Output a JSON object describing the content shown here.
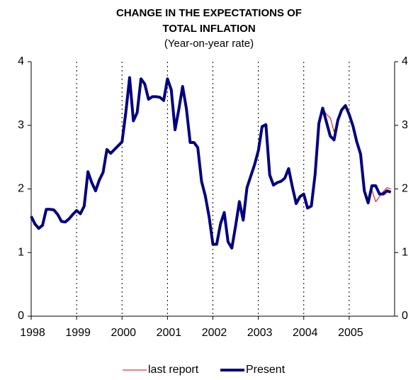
{
  "chart_data": {
    "type": "line",
    "title": "CHANGE IN THE EXPECTATIONS OF TOTAL INFLATION",
    "subtitle": "(Year-on-year rate)",
    "x": [
      1998,
      1998.083,
      1998.167,
      1998.25,
      1998.333,
      1998.417,
      1998.5,
      1998.583,
      1998.667,
      1998.75,
      1998.833,
      1998.917,
      1999,
      1999.083,
      1999.167,
      1999.25,
      1999.333,
      1999.417,
      1999.5,
      1999.583,
      1999.667,
      1999.75,
      1999.833,
      1999.917,
      2000,
      2000.083,
      2000.167,
      2000.25,
      2000.333,
      2000.417,
      2000.5,
      2000.583,
      2000.667,
      2000.75,
      2000.833,
      2000.917,
      2001,
      2001.083,
      2001.167,
      2001.25,
      2001.333,
      2001.417,
      2001.5,
      2001.583,
      2001.667,
      2001.75,
      2001.833,
      2001.917,
      2002,
      2002.083,
      2002.167,
      2002.25,
      2002.333,
      2002.417,
      2002.5,
      2002.583,
      2002.667,
      2002.75,
      2002.833,
      2002.917,
      2003,
      2003.083,
      2003.167,
      2003.25,
      2003.333,
      2003.417,
      2003.5,
      2003.583,
      2003.667,
      2003.75,
      2003.833,
      2003.917,
      2004,
      2004.083,
      2004.167,
      2004.25,
      2004.333,
      2004.417,
      2004.5,
      2004.583,
      2004.667,
      2004.75,
      2004.833,
      2004.917,
      2005,
      2005.083,
      2005.167,
      2005.25,
      2005.333,
      2005.417,
      2005.5,
      2005.583,
      2005.667,
      2005.75,
      2005.833,
      2005.917
    ],
    "series": [
      {
        "name": "last report",
        "color": "#e00000",
        "width": 1,
        "values": [
          null,
          null,
          null,
          null,
          null,
          null,
          null,
          null,
          null,
          null,
          null,
          null,
          null,
          null,
          null,
          null,
          null,
          null,
          null,
          null,
          null,
          null,
          null,
          null,
          null,
          null,
          null,
          null,
          null,
          null,
          null,
          null,
          null,
          null,
          null,
          null,
          null,
          null,
          null,
          null,
          null,
          null,
          null,
          null,
          null,
          null,
          null,
          null,
          null,
          null,
          null,
          null,
          null,
          null,
          null,
          null,
          null,
          null,
          null,
          null,
          null,
          null,
          null,
          null,
          null,
          null,
          null,
          null,
          null,
          null,
          null,
          null,
          1.92,
          1.7,
          1.73,
          2.23,
          3.03,
          3.27,
          3.17,
          3.12,
          2.9,
          3.08,
          3.24,
          3.31,
          3.17,
          2.99,
          2.74,
          2.55,
          1.97,
          1.8,
          1.98,
          1.8,
          1.88,
          1.96,
          2.02,
          2.0
        ]
      },
      {
        "name": "Present",
        "color": "#000080",
        "width": 4,
        "values": [
          1.57,
          1.45,
          1.38,
          1.43,
          1.68,
          1.68,
          1.67,
          1.6,
          1.49,
          1.48,
          1.53,
          1.6,
          1.66,
          1.61,
          1.73,
          2.27,
          2.1,
          1.97,
          2.14,
          2.26,
          2.62,
          2.56,
          2.62,
          2.68,
          2.74,
          3.2,
          3.75,
          3.07,
          3.2,
          3.73,
          3.65,
          3.41,
          3.45,
          3.45,
          3.44,
          3.39,
          3.73,
          3.56,
          2.93,
          3.25,
          3.61,
          3.26,
          2.73,
          2.73,
          2.65,
          2.12,
          1.89,
          1.56,
          1.13,
          1.13,
          1.45,
          1.63,
          1.17,
          1.07,
          1.42,
          1.8,
          1.51,
          2.02,
          2.2,
          2.38,
          2.6,
          2.98,
          3.01,
          2.22,
          2.06,
          2.1,
          2.12,
          2.17,
          2.32,
          2.03,
          1.77,
          1.88,
          1.92,
          1.7,
          1.73,
          2.23,
          3.03,
          3.27,
          3.05,
          2.83,
          2.77,
          3.08,
          3.24,
          3.31,
          3.17,
          2.99,
          2.74,
          2.55,
          1.97,
          1.78,
          2.05,
          2.05,
          1.92,
          1.92,
          1.97,
          1.95
        ]
      }
    ],
    "xlim": [
      1998,
      2006
    ],
    "xticks": [
      1998,
      1999,
      2000,
      2001,
      2002,
      2003,
      2004,
      2005
    ],
    "ylim": [
      0,
      4
    ],
    "yticks": [
      0,
      1,
      2,
      3,
      4
    ],
    "y2lim": [
      0,
      4
    ],
    "y2ticks": [
      0,
      1,
      2,
      3,
      4
    ],
    "grid": "x",
    "legend": "bottom"
  }
}
